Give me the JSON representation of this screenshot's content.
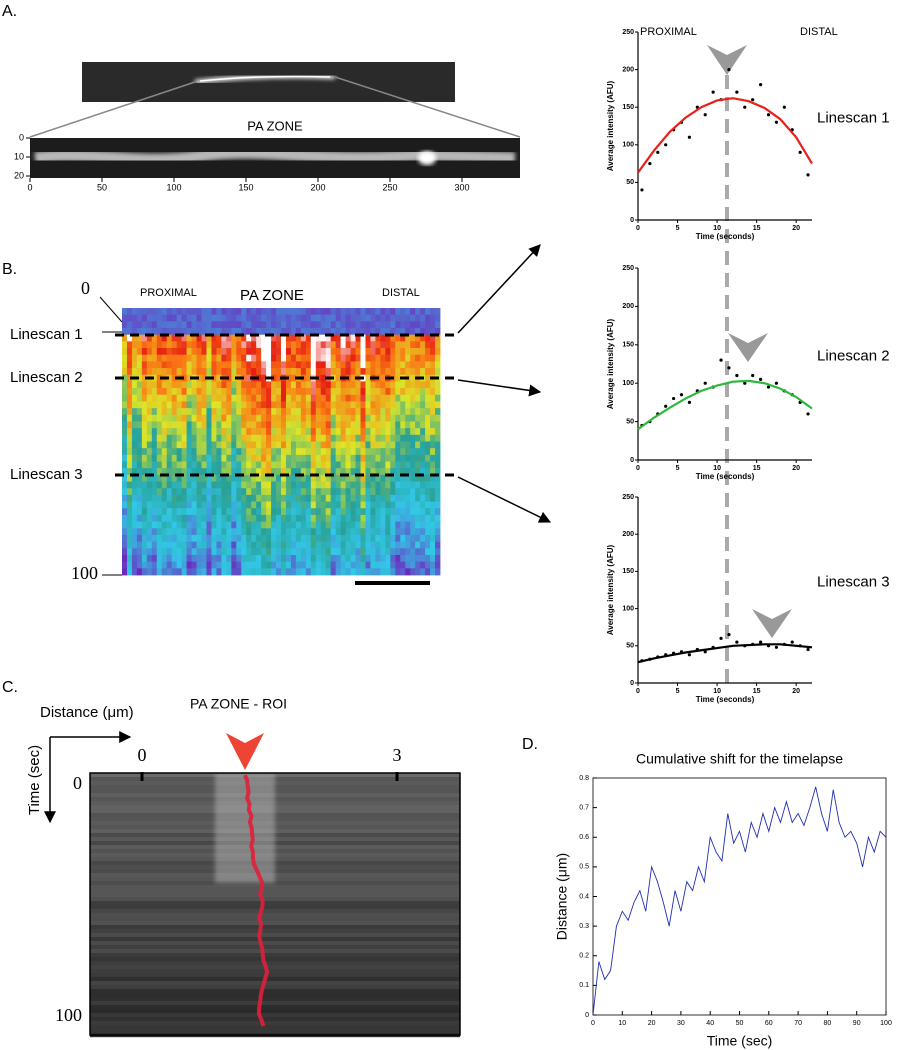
{
  "panel_a": {
    "label": "A.",
    "strip_title": "PA ZONE",
    "strip_xticks": [
      0,
      50,
      100,
      150,
      200,
      250,
      300
    ],
    "strip_yticks": [
      0,
      10,
      20
    ]
  },
  "panel_b": {
    "label": "B.",
    "proximal": "PROXIMAL",
    "title": "PA ZONE",
    "distal": "DISTAL",
    "time_ticks": [
      0,
      100
    ],
    "linescans": [
      "Linescan 1",
      "Linescan 2",
      "Linescan 3"
    ]
  },
  "panel_c": {
    "label": "C.",
    "title": "PA ZONE - ROI",
    "x_axis_label": "Distance (μm)",
    "y_axis_label": "Time (sec)",
    "xticks": [
      0,
      3
    ],
    "yticks": [
      0,
      100
    ]
  },
  "panel_d": {
    "label": "D."
  },
  "chart_data": [
    {
      "type": "scatter",
      "title": "Linescan 1",
      "left_label": "PROXIMAL",
      "right_label": "DISTAL",
      "x_label": "Time (seconds)",
      "y_label": "Average intensity (AFU)",
      "xlim": [
        0,
        22
      ],
      "ylim": [
        0,
        250
      ],
      "xticks": [
        0,
        5,
        10,
        15,
        20
      ],
      "yticks": [
        0,
        50,
        100,
        150,
        200,
        250
      ],
      "series": [
        {
          "mode": "points",
          "color": "#000000",
          "x": [
            0.5,
            1.5,
            2.5,
            3.5,
            4.5,
            5.5,
            6.5,
            7.5,
            8.5,
            9.5,
            10.5,
            11.5,
            12.5,
            13.5,
            14.5,
            15.5,
            16.5,
            17.5,
            18.5,
            19.5,
            20.5,
            21.5
          ],
          "values": [
            40,
            75,
            90,
            100,
            120,
            130,
            110,
            150,
            140,
            170,
            160,
            200,
            170,
            150,
            160,
            180,
            140,
            130,
            150,
            120,
            90,
            60
          ]
        },
        {
          "mode": "line",
          "color": "#e8201a",
          "x": [
            0,
            2,
            4,
            6,
            8,
            10,
            12,
            14,
            16,
            18,
            20,
            22
          ],
          "values": [
            63,
            92,
            117,
            136,
            150,
            159,
            162,
            158,
            149,
            134,
            110,
            75
          ]
        }
      ]
    },
    {
      "type": "scatter",
      "title": "Linescan 2",
      "x_label": "Time (seconds)",
      "y_label": "Average intensity (AFU)",
      "xlim": [
        0,
        22
      ],
      "ylim": [
        0,
        250
      ],
      "xticks": [
        0,
        5,
        10,
        15,
        20
      ],
      "yticks": [
        0,
        50,
        100,
        150,
        200,
        250
      ],
      "series": [
        {
          "mode": "points",
          "color": "#000000",
          "x": [
            0.5,
            1.5,
            2.5,
            3.5,
            4.5,
            5.5,
            6.5,
            7.5,
            8.5,
            9.5,
            10.5,
            11.5,
            12.5,
            13.5,
            14.5,
            15.5,
            16.5,
            17.5,
            18.5,
            19.5,
            20.5,
            21.5
          ],
          "values": [
            45,
            50,
            60,
            70,
            80,
            85,
            75,
            90,
            100,
            95,
            130,
            120,
            110,
            100,
            110,
            105,
            95,
            100,
            90,
            85,
            75,
            60
          ]
        },
        {
          "mode": "line",
          "color": "#2db83d",
          "x": [
            0,
            2,
            4,
            6,
            8,
            10,
            12,
            14,
            16,
            18,
            20,
            22
          ],
          "values": [
            40,
            55,
            68,
            80,
            90,
            97,
            102,
            103,
            100,
            93,
            82,
            67
          ]
        }
      ]
    },
    {
      "type": "scatter",
      "title": "Linescan 3",
      "x_label": "Time (seconds)",
      "y_label": "Average intensity (AFU)",
      "xlim": [
        0,
        22
      ],
      "ylim": [
        0,
        250
      ],
      "xticks": [
        0,
        5,
        10,
        15,
        20
      ],
      "yticks": [
        0,
        50,
        100,
        150,
        200,
        250
      ],
      "series": [
        {
          "mode": "points",
          "color": "#000000",
          "x": [
            0.5,
            1.5,
            2.5,
            3.5,
            4.5,
            5.5,
            6.5,
            7.5,
            8.5,
            9.5,
            10.5,
            11.5,
            12.5,
            13.5,
            14.5,
            15.5,
            16.5,
            17.5,
            18.5,
            19.5,
            20.5,
            21.5
          ],
          "values": [
            30,
            32,
            35,
            38,
            40,
            42,
            38,
            45,
            42,
            48,
            60,
            65,
            55,
            50,
            52,
            55,
            50,
            48,
            52,
            55,
            50,
            45
          ]
        },
        {
          "mode": "line",
          "color": "#000000",
          "x": [
            0,
            2,
            4,
            6,
            8,
            10,
            12,
            14,
            16,
            18,
            20,
            22
          ],
          "values": [
            28,
            33,
            37,
            41,
            44,
            47,
            50,
            51,
            52,
            52,
            50,
            48
          ]
        }
      ]
    },
    {
      "type": "line",
      "title": "Cumulative shift for the timelapse",
      "x_label": "Time (sec)",
      "y_label": "Distance (μm)",
      "frame": true,
      "xlim": [
        0,
        100
      ],
      "ylim": [
        0,
        0.8
      ],
      "xticks": [
        0,
        10,
        20,
        30,
        40,
        50,
        60,
        70,
        80,
        90,
        100
      ],
      "yticks": [
        0,
        0.1,
        0.2,
        0.3,
        0.4,
        0.5,
        0.6,
        0.7,
        0.8
      ],
      "series": [
        {
          "mode": "line",
          "color": "#1f2fb0",
          "x": [
            0,
            2,
            4,
            6,
            8,
            10,
            12,
            14,
            16,
            18,
            20,
            22,
            24,
            26,
            28,
            30,
            32,
            34,
            36,
            38,
            40,
            42,
            44,
            46,
            48,
            50,
            52,
            54,
            56,
            58,
            60,
            62,
            64,
            66,
            68,
            70,
            72,
            74,
            76,
            78,
            80,
            82,
            84,
            86,
            88,
            90,
            92,
            94,
            96,
            98,
            100
          ],
          "values": [
            0,
            0.18,
            0.12,
            0.15,
            0.3,
            0.35,
            0.32,
            0.38,
            0.42,
            0.35,
            0.5,
            0.45,
            0.38,
            0.3,
            0.42,
            0.35,
            0.45,
            0.42,
            0.5,
            0.45,
            0.6,
            0.55,
            0.52,
            0.68,
            0.58,
            0.62,
            0.55,
            0.65,
            0.6,
            0.68,
            0.62,
            0.7,
            0.65,
            0.72,
            0.65,
            0.68,
            0.64,
            0.7,
            0.77,
            0.68,
            0.62,
            0.76,
            0.65,
            0.6,
            0.62,
            0.58,
            0.5,
            0.6,
            0.55,
            0.62,
            0.6
          ]
        }
      ]
    }
  ]
}
